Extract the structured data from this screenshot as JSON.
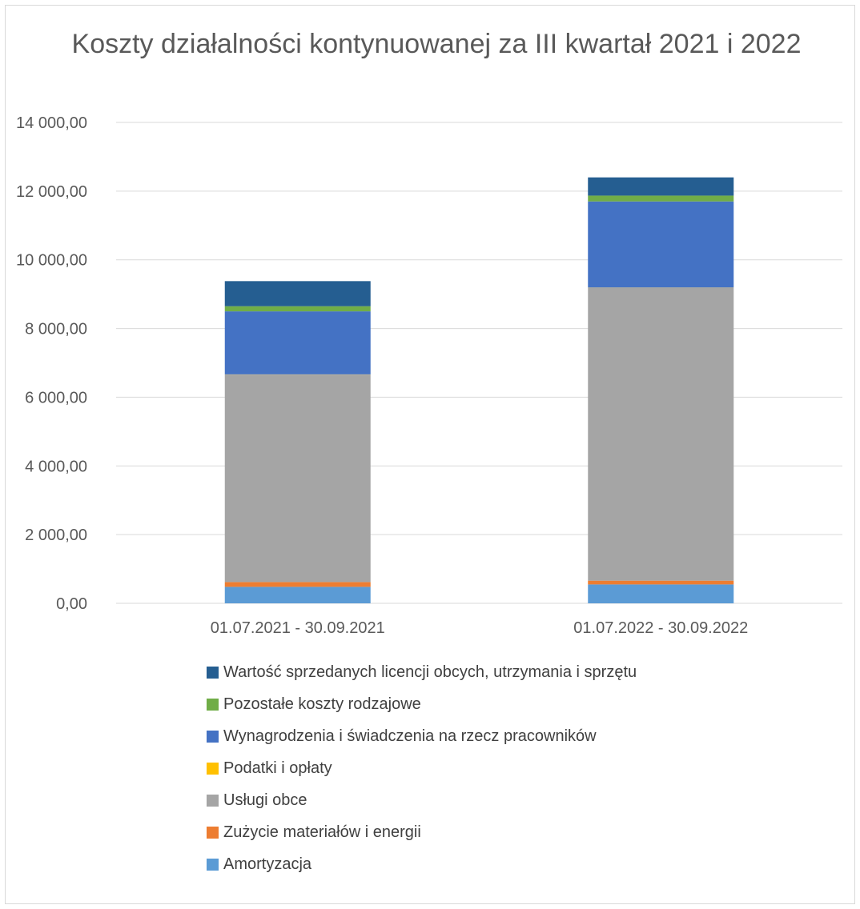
{
  "chart_data": {
    "type": "bar",
    "stacked": true,
    "title": "Koszty działalności kontynuowanej za III kwartał 2021 i 2022",
    "categories": [
      "01.07.2021 - 30.09.2021",
      "01.07.2022 - 30.09.2022"
    ],
    "ylim": [
      0,
      14000
    ],
    "yticks": [
      0,
      2000,
      4000,
      6000,
      8000,
      10000,
      12000,
      14000
    ],
    "ytick_labels": [
      "0,00",
      "2 000,00",
      "4 000,00",
      "6 000,00",
      "8 000,00",
      "10 000,00",
      "12 000,00",
      "14 000,00"
    ],
    "grid": true,
    "legend_position": "bottom",
    "series": [
      {
        "name": "Amortyzacja",
        "color": "#5b9bd5",
        "values": [
          480,
          550
        ]
      },
      {
        "name": "Zużycie materiałów i energii",
        "color": "#ed7d31",
        "values": [
          140,
          110
        ]
      },
      {
        "name": "Usługi obce",
        "color": "#a5a5a5",
        "values": [
          6040,
          8530
        ]
      },
      {
        "name": "Podatki i opłaty",
        "color": "#ffc000",
        "values": [
          5,
          5
        ]
      },
      {
        "name": "Wynagrodzenia i świadczenia na rzecz pracowników",
        "color": "#4472c4",
        "values": [
          1835,
          2505
        ]
      },
      {
        "name": "Pozostałe koszty rodzajowe",
        "color": "#70ad47",
        "values": [
          150,
          170
        ]
      },
      {
        "name": "Wartość sprzedanych licencji obcych, utrzymania i sprzętu",
        "color": "#255e91",
        "values": [
          730,
          530
        ]
      }
    ]
  }
}
